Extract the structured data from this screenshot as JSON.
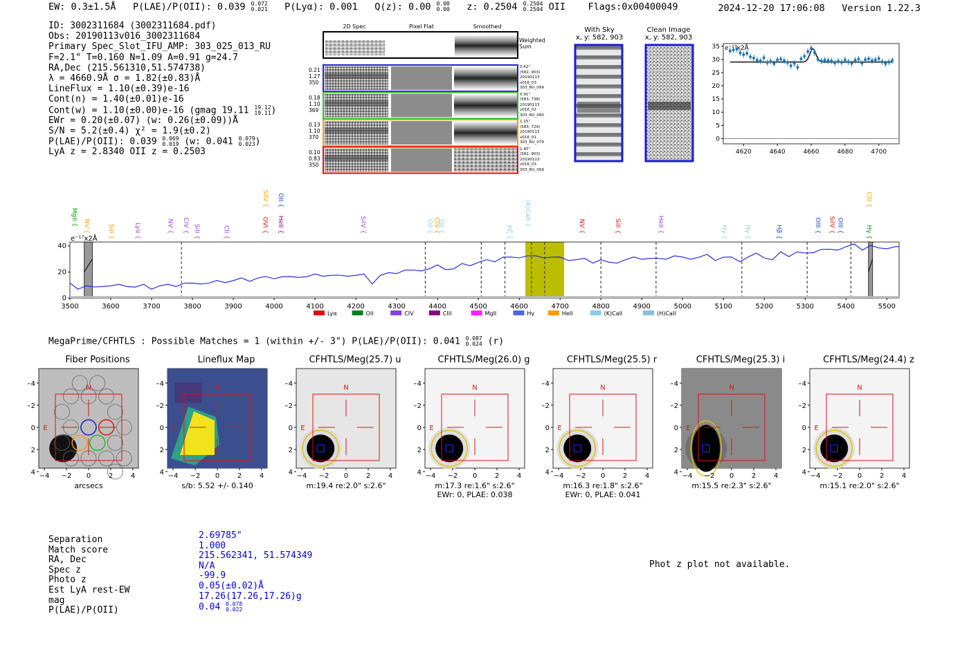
{
  "header": {
    "ew": "EW: 0.3±1.5Å",
    "plae": "P(LAE)/P(OII): 0.039",
    "plae_hi": "0.072",
    "plae_lo": "0.021",
    "plya": "P(Lyα): 0.001",
    "qz": "Q(z): 0.00",
    "qz_hi": "0.00",
    "qz_lo": "0.00",
    "z": "z: 0.2504",
    "z_hi": "0.2504",
    "z_lo": "0.2504",
    "z_line": "OII",
    "flags": "Flags:0x00400049",
    "timestamp": "2024-12-20 17:06:08",
    "version": "Version 1.22.3"
  },
  "info": {
    "id": "ID: 3002311684 (3002311684.pdf)",
    "obs": "Obs: 20190113v016_3002311684",
    "slot": "Primary Spec_Slot_IFU_AMP: 303_025_013_RU",
    "fline": "F=2.1\"  T=0.160  N=1.09  A=0.91  g=24.7",
    "radec": "RA,Dec (215.561310,51.574738)",
    "lambda": "λ = 4660.9Å   σ = 1.82(±0.83)Å",
    "lineflux": "LineFlux = 1.10(±0.39)e-16",
    "contn": "Cont(n) = 1.40(±0.01)e-16",
    "contw": "Cont(w) = 1.10(±0.00)e-16 (gmag 19.11",
    "contw_hi": "19.12",
    "contw_lo": "19.11",
    "ewr": "EWr = 0.20(±0.07) (w: 0.26(±0.09))Å",
    "sn": "S/N = 5.2(±0.4)  χ² = 1.9(±0.2)",
    "plae2": "P(LAE)/P(OII): 0.039",
    "plae2_hi": "0.069",
    "plae2_lo": "0.019",
    "plae2_w": "(w: 0.041",
    "plae2_w_hi": "0.079",
    "plae2_w_lo": "0.023",
    "lyaz": "LyA z = 2.8340   OII z = 0.2503"
  },
  "spec2d": {
    "col_titles": [
      "2D Spec",
      "Pixel Flat",
      "Smoothed"
    ],
    "weighted_label_1": "Weighted",
    "weighted_label_2": "Sum",
    "rows": [
      {
        "left": [
          "0.21",
          "1.27",
          "350"
        ],
        "right": [
          "0.62\"",
          "(582, 903)",
          "20190113",
          "v016_03",
          "303_RU_099"
        ],
        "color": "#1f1fd0"
      },
      {
        "left": [
          "0.18",
          "1.10",
          "369"
        ],
        "right": [
          "0.91\"",
          "(583, 738)",
          "20190113",
          "v016_02",
          "303_RU_080"
        ],
        "color": "#22c022"
      },
      {
        "left": [
          "0.13",
          "1.10",
          "370"
        ],
        "right": [
          "1.15\"",
          "(583, 729)",
          "20190113",
          "v016_01",
          "303_RU_079"
        ],
        "color": "#ff9a00"
      },
      {
        "left": [
          "0.10",
          "0.83",
          "350"
        ],
        "right": [
          "1.40\"",
          "(582, 903)",
          "20190113",
          "v016_03",
          "303_RU_099"
        ],
        "color": "#e01010"
      }
    ]
  },
  "sky": {
    "with_sky": "With Sky",
    "clean": "Clean Image",
    "coords": "x, y: 582, 903"
  },
  "zoom_chart": {
    "type": "scatter",
    "units_label": "e⁻¹⁷x2Å",
    "xlim": [
      4608,
      4712
    ],
    "ylim": [
      -2,
      36
    ],
    "xticks": [
      4620,
      4640,
      4660,
      4680,
      4700
    ],
    "yticks": [
      0,
      5,
      10,
      15,
      20,
      25,
      30,
      35
    ],
    "x": [
      4612,
      4614,
      4616,
      4618,
      4620,
      4622,
      4624,
      4626,
      4628,
      4630,
      4632,
      4634,
      4636,
      4638,
      4640,
      4642,
      4644,
      4646,
      4648,
      4650,
      4652,
      4654,
      4656,
      4658,
      4660,
      4662,
      4664,
      4666,
      4668,
      4670,
      4672,
      4674,
      4676,
      4678,
      4680,
      4682,
      4684,
      4686,
      4688,
      4690,
      4692,
      4694,
      4696,
      4698,
      4700,
      4702,
      4704,
      4706,
      4708
    ],
    "y": [
      33.2,
      33.6,
      33.9,
      32.5,
      31.8,
      32.3,
      31.0,
      30.5,
      29.7,
      29.4,
      30.6,
      28.8,
      29.3,
      28.4,
      29.8,
      30.1,
      29.5,
      28.8,
      27.6,
      28.5,
      27.0,
      30.2,
      31.2,
      33.0,
      34.2,
      32.5,
      30.0,
      29.4,
      29.7,
      29.5,
      29.4,
      28.7,
      29.3,
      28.9,
      29.8,
      29.1,
      28.5,
      29.7,
      30.1,
      28.6,
      29.9,
      30.2,
      29.5,
      29.8,
      30.3,
      29.1,
      28.4,
      29.0,
      29.6
    ],
    "fit_base": 29.0,
    "fit_peak": 34.0,
    "fit_center": 4661,
    "fit_sigma": 1.82
  },
  "main_chart": {
    "type": "line",
    "units_label": "e⁻¹⁷x2Å",
    "xlim": [
      3500,
      5530
    ],
    "ylim": [
      0,
      43
    ],
    "xticks": [
      3500,
      3600,
      3700,
      3800,
      3900,
      4000,
      4100,
      4200,
      4300,
      4400,
      4500,
      4600,
      4700,
      4800,
      4900,
      5000,
      5100,
      5200,
      5300,
      5400,
      5500
    ],
    "yticks": [
      0,
      20,
      40
    ],
    "x": [
      3500,
      3520,
      3540,
      3560,
      3580,
      3600,
      3620,
      3640,
      3660,
      3680,
      3700,
      3720,
      3740,
      3760,
      3780,
      3800,
      3820,
      3840,
      3860,
      3880,
      3900,
      3920,
      3940,
      3960,
      3980,
      4000,
      4020,
      4040,
      4060,
      4080,
      4100,
      4120,
      4140,
      4160,
      4180,
      4200,
      4220,
      4240,
      4260,
      4280,
      4300,
      4320,
      4340,
      4360,
      4380,
      4400,
      4420,
      4440,
      4460,
      4480,
      4500,
      4520,
      4540,
      4560,
      4580,
      4600,
      4620,
      4640,
      4660,
      4680,
      4700,
      4720,
      4740,
      4760,
      4780,
      4800,
      4820,
      4840,
      4860,
      4880,
      4900,
      4920,
      4940,
      4960,
      4980,
      5000,
      5020,
      5040,
      5060,
      5080,
      5100,
      5120,
      5140,
      5160,
      5180,
      5200,
      5220,
      5240,
      5260,
      5280,
      5300,
      5320,
      5340,
      5360,
      5380,
      5400,
      5420,
      5440,
      5460,
      5480,
      5500,
      5520,
      5530
    ],
    "y": [
      10,
      8,
      9,
      7,
      10,
      9,
      9,
      10,
      8,
      9,
      8,
      9,
      9,
      10,
      11,
      10,
      12,
      11,
      12,
      13,
      13,
      14,
      14,
      15,
      15,
      16,
      16,
      15,
      17,
      16,
      17,
      18,
      17,
      16,
      18,
      17,
      17,
      12,
      17,
      18,
      20,
      21,
      20,
      22,
      22,
      24,
      23,
      22,
      25,
      26,
      27,
      28,
      29,
      31,
      30,
      32,
      32,
      31,
      32,
      31,
      30,
      30,
      29,
      29,
      28,
      29,
      26,
      28,
      29,
      30,
      31,
      30,
      29,
      31,
      32,
      30,
      31,
      31,
      32,
      30,
      31,
      30,
      29,
      31,
      33,
      32,
      29,
      34,
      33,
      35,
      33,
      36,
      37,
      36,
      38,
      39,
      40,
      38,
      40,
      37,
      39,
      39,
      38
    ],
    "highlight": [
      4615,
      4710
    ],
    "masks": [
      [
        3535,
        3555
      ],
      [
        5455,
        5465
      ]
    ],
    "dashed": [
      3773,
      4370,
      4507,
      4565,
      4630,
      4662,
      4800,
      4935,
      5145,
      5305,
      5412
    ]
  },
  "line_markers": [
    {
      "name": "MgII",
      "w": 3500,
      "row": 1,
      "color": "#009a00"
    },
    {
      "name": "NV",
      "w": 3530,
      "row": 2,
      "color": "#ff9a00"
    },
    {
      "name": "SiII",
      "w": 3590,
      "row": 3,
      "color": "#ff9a00"
    },
    {
      "name": "Lyα",
      "w": 3655,
      "row": 3,
      "color": "#a040e0"
    },
    {
      "name": "NV",
      "w": 3735,
      "row": 2,
      "color": "#a040e0"
    },
    {
      "name": "CIV",
      "w": 3773,
      "row": 2,
      "color": "#a040e0"
    },
    {
      "name": "SiII",
      "w": 3800,
      "row": 3,
      "color": "#a040e0"
    },
    {
      "name": "CII",
      "w": 3872,
      "row": 3,
      "color": "#a040e0"
    },
    {
      "name": "SiIV",
      "w": 3968,
      "row": 0,
      "color": "#ff9a00"
    },
    {
      "name": "OVI",
      "w": 3967,
      "row": 2,
      "color": "#e01010"
    },
    {
      "name": "OII",
      "w": 4005,
      "row": 0,
      "color": "#1f3fd0"
    },
    {
      "name": "HeII",
      "w": 4005,
      "row": 2,
      "color": "#8a0080"
    },
    {
      "name": "SiIV",
      "w": 4207,
      "row": 2,
      "color": "#a040e0"
    },
    {
      "name": "OII",
      "w": 4370,
      "row": 2,
      "color": "#87cdeb"
    },
    {
      "name": "CIV",
      "w": 4387,
      "row": 2,
      "color": "#ff9a00"
    },
    {
      "name": "OII",
      "w": 4398,
      "row": 2,
      "color": "#87cdeb"
    },
    {
      "name": "Hζ",
      "w": 4565,
      "row": 3,
      "color": "#87cdeb"
    },
    {
      "name": "(K)CaII",
      "w": 4610,
      "row": 1,
      "color": "#87cdeb"
    },
    {
      "name": "NV",
      "w": 4742,
      "row": 2,
      "color": "#e01010"
    },
    {
      "name": "SiII",
      "w": 4830,
      "row": 2,
      "color": "#e01010"
    },
    {
      "name": "HeII",
      "w": 4935,
      "row": 2,
      "color": "#a040e0"
    },
    {
      "name": "Hγ",
      "w": 5090,
      "row": 3,
      "color": "#87cdeb"
    },
    {
      "name": "Hγ",
      "w": 5148,
      "row": 3,
      "color": "#87cdeb"
    },
    {
      "name": "Hβ",
      "w": 5225,
      "row": 3,
      "color": "#1f3fd0"
    },
    {
      "name": "OIII",
      "w": 5320,
      "row": 2,
      "color": "#1f3fd0"
    },
    {
      "name": "SiIV",
      "w": 5355,
      "row": 2,
      "color": "#e01010"
    },
    {
      "name": "OIII",
      "w": 5375,
      "row": 2,
      "color": "#1f3fd0"
    },
    {
      "name": "Hγ",
      "w": 5445,
      "row": 3,
      "color": "#009a00"
    },
    {
      "name": "CIII",
      "w": 5445,
      "row": 0,
      "color": "#ff9a00"
    }
  ],
  "legend": [
    {
      "label": "Lyα",
      "color": "#e01010"
    },
    {
      "label": "OII",
      "color": "#00801f"
    },
    {
      "label": "CIV",
      "color": "#8a40e0"
    },
    {
      "label": "CIII",
      "color": "#8a0080"
    },
    {
      "label": "MgII",
      "color": "#ff20ff"
    },
    {
      "label": "Hγ",
      "color": "#4a6ae0"
    },
    {
      "label": "HeII",
      "color": "#ff9a00"
    },
    {
      "label": "(K)CaII",
      "color": "#87cdeb"
    },
    {
      "label": "(H)CaII",
      "color": "#87bde0"
    }
  ],
  "megaprime": {
    "text": "MegaPrime/CFHTLS : Possible Matches = 1 (within +/- 3\")  P(LAE)/P(OII): 0.041",
    "hi": "0.087",
    "lo": "0.024",
    "suffix": "(r)"
  },
  "cutouts": [
    {
      "title": "Fiber Positions",
      "cap1": "arcsecs",
      "cap2": "",
      "kind": "fiber",
      "bg": "#bdbdbd"
    },
    {
      "title": "Lineflux Map",
      "cap1": "s/b: 5.52 +/- 0.140",
      "cap2": "",
      "kind": "lineflux",
      "bg": "#3a5a9a"
    },
    {
      "title": "CFHTLS/Meg(25.7) u",
      "cap1": "m:19.4  re:2.0\"  s:2.6\"",
      "cap2": "",
      "kind": "img",
      "bg": "#e6e6e6"
    },
    {
      "title": "CFHTLS/Meg(26.0) g",
      "cap1": "m:17.3  re:1.6\"  s:2.6\"",
      "cap2": "EWr: 0, PLAE: 0.038",
      "kind": "img",
      "bg": "#f4f4f4"
    },
    {
      "title": "CFHTLS/Meg(25.5) r",
      "cap1": "m:16.3  re:1.8\"  s:2.6\"",
      "cap2": "EWr: 0, PLAE: 0.041",
      "kind": "img",
      "bg": "#f4f4f4"
    },
    {
      "title": "CFHTLS/Meg(25.3) i",
      "cap1": "m:15.5  re:2.3\"  s:2.6\"",
      "cap2": "",
      "kind": "iband",
      "bg": "#8a8a8a"
    },
    {
      "title": "CFHTLS/Meg(24.4) z",
      "cap1": "m:15.1  re:2.0\"  s:2.6\"",
      "cap2": "",
      "kind": "img",
      "bg": "#f4f4f4"
    }
  ],
  "cutout_axis": {
    "ticks": [
      "−4",
      "−2",
      "0",
      "2",
      "4"
    ],
    "n_label": "N",
    "e_label": "E"
  },
  "match_table": {
    "labels": [
      "Separation",
      "Match score",
      "RA, Dec",
      "Spec z",
      "Photo z",
      "Est LyA rest-EW",
      "mag",
      "P(LAE)/P(OII)"
    ],
    "values": [
      "2.69785\"",
      "1.000",
      "215.562341, 51.574349",
      "N/A",
      "-99.9",
      "0.05(±0.02)Å",
      "17.26(17.26,17.26)g",
      "0.04"
    ],
    "plae_hi": "0.078",
    "plae_lo": "0.022"
  },
  "photz_note": "Phot z plot not available."
}
